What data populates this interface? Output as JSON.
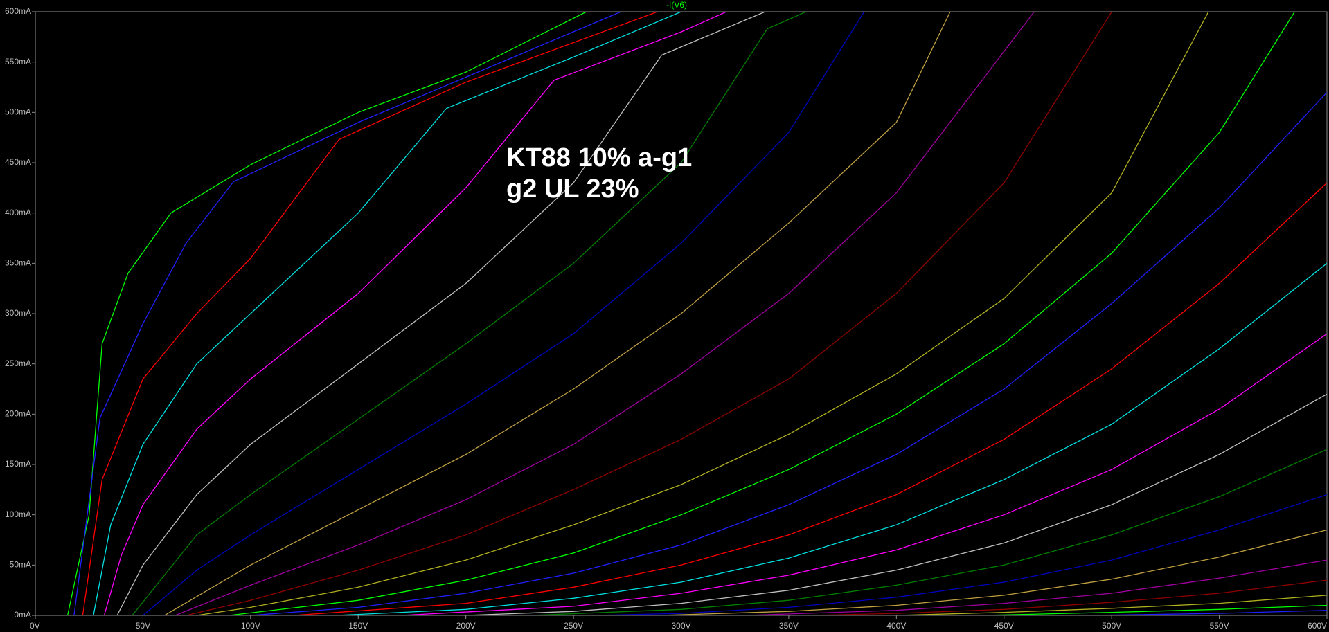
{
  "chart_data": {
    "type": "line",
    "title": "-I(V6)",
    "title_color": "#00ff00",
    "annotation": [
      "KT88 10% a-g1",
      "g2 UL 23%"
    ],
    "xlim": [
      0,
      600
    ],
    "ylim": [
      0,
      600
    ],
    "xticks": [
      {
        "value": 0,
        "label": "0V"
      },
      {
        "value": 50,
        "label": "50V"
      },
      {
        "value": 100,
        "label": "100V"
      },
      {
        "value": 150,
        "label": "150V"
      },
      {
        "value": 200,
        "label": "200V"
      },
      {
        "value": 250,
        "label": "250V"
      },
      {
        "value": 300,
        "label": "300V"
      },
      {
        "value": 350,
        "label": "350V"
      },
      {
        "value": 400,
        "label": "400V"
      },
      {
        "value": 450,
        "label": "450V"
      },
      {
        "value": 500,
        "label": "500V"
      },
      {
        "value": 550,
        "label": "550V"
      },
      {
        "value": 600,
        "label": "600V"
      }
    ],
    "yticks": [
      {
        "value": 0,
        "label": "0mA"
      },
      {
        "value": 50,
        "label": "50mA"
      },
      {
        "value": 100,
        "label": "100mA"
      },
      {
        "value": 150,
        "label": "150mA"
      },
      {
        "value": 200,
        "label": "200mA"
      },
      {
        "value": 250,
        "label": "250mA"
      },
      {
        "value": 300,
        "label": "300mA"
      },
      {
        "value": 350,
        "label": "350mA"
      },
      {
        "value": 400,
        "label": "400mA"
      },
      {
        "value": 450,
        "label": "450mA"
      },
      {
        "value": 500,
        "label": "500mA"
      },
      {
        "value": 550,
        "label": "550mA"
      },
      {
        "value": 600,
        "label": "600mA"
      }
    ],
    "grid": false,
    "series": [
      {
        "color": "#00ff00",
        "x": [
          15,
          25,
          31,
          43,
          63,
          100,
          150,
          200,
          256
        ],
        "values": [
          0,
          100,
          270,
          340,
          400,
          448,
          500,
          540,
          600
        ]
      },
      {
        "color": "#2020ff",
        "x": [
          18,
          30,
          50,
          70,
          92,
          150,
          200,
          272
        ],
        "values": [
          0,
          196,
          290,
          370,
          431,
          490,
          535,
          600
        ]
      },
      {
        "color": "#ff0000",
        "x": [
          22,
          31,
          50,
          75,
          100,
          141,
          200,
          289
        ],
        "values": [
          0,
          135,
          235,
          300,
          355,
          473,
          530,
          600
        ]
      },
      {
        "color": "#00e0e0",
        "x": [
          27,
          35,
          50,
          75,
          100,
          150,
          191,
          250,
          300
        ],
        "values": [
          0,
          90,
          170,
          250,
          300,
          400,
          504,
          555,
          600
        ]
      },
      {
        "color": "#ff00ff",
        "x": [
          32,
          40,
          50,
          75,
          100,
          150,
          200,
          241,
          300,
          321
        ],
        "values": [
          0,
          60,
          110,
          185,
          235,
          320,
          425,
          532,
          580,
          600
        ]
      },
      {
        "color": "#c0c0c0",
        "x": [
          38,
          50,
          75,
          100,
          150,
          200,
          250,
          291,
          339
        ],
        "values": [
          0,
          50,
          120,
          170,
          250,
          330,
          430,
          557,
          600
        ]
      },
      {
        "color": "#008000",
        "x": [
          45,
          75,
          100,
          150,
          200,
          250,
          300,
          340,
          358
        ],
        "values": [
          0,
          80,
          120,
          195,
          270,
          350,
          450,
          583,
          600
        ]
      },
      {
        "color": "#0000c0",
        "x": [
          50,
          75,
          100,
          150,
          200,
          250,
          300,
          350,
          385
        ],
        "values": [
          0,
          45,
          80,
          145,
          210,
          280,
          370,
          480,
          600
        ]
      },
      {
        "color": "#c0a040",
        "x": [
          60,
          100,
          150,
          200,
          250,
          300,
          350,
          400,
          425
        ],
        "values": [
          0,
          50,
          105,
          160,
          225,
          300,
          390,
          490,
          600
        ]
      },
      {
        "color": "#a000a0",
        "x": [
          65,
          100,
          150,
          200,
          250,
          300,
          350,
          400,
          464
        ],
        "values": [
          0,
          30,
          70,
          115,
          170,
          240,
          320,
          420,
          600
        ]
      },
      {
        "color": "#900000",
        "x": [
          70,
          100,
          150,
          200,
          250,
          300,
          350,
          400,
          450,
          500
        ],
        "values": [
          0,
          15,
          45,
          80,
          125,
          175,
          235,
          320,
          430,
          600
        ]
      },
      {
        "color": "#b0b020",
        "x": [
          75,
          100,
          150,
          200,
          250,
          300,
          350,
          400,
          450,
          500,
          545
        ],
        "values": [
          0,
          8,
          28,
          55,
          90,
          130,
          180,
          240,
          315,
          420,
          600
        ]
      },
      {
        "color": "#00ff00",
        "x": [
          90,
          150,
          200,
          250,
          300,
          350,
          400,
          450,
          500,
          550,
          585
        ],
        "values": [
          0,
          15,
          35,
          62,
          100,
          145,
          200,
          270,
          360,
          480,
          600
        ]
      },
      {
        "color": "#2020ff",
        "x": [
          100,
          150,
          200,
          250,
          300,
          350,
          400,
          450,
          500,
          550,
          600
        ],
        "values": [
          0,
          8,
          22,
          42,
          70,
          110,
          160,
          225,
          310,
          405,
          520
        ]
      },
      {
        "color": "#ff0000",
        "x": [
          120,
          200,
          250,
          300,
          350,
          400,
          450,
          500,
          550,
          600
        ],
        "values": [
          0,
          12,
          28,
          50,
          80,
          120,
          175,
          245,
          330,
          430
        ]
      },
      {
        "color": "#00e0e0",
        "x": [
          140,
          200,
          250,
          300,
          350,
          400,
          450,
          500,
          550,
          600
        ],
        "values": [
          0,
          6,
          17,
          33,
          57,
          90,
          135,
          190,
          265,
          350
        ]
      },
      {
        "color": "#ff00ff",
        "x": [
          170,
          250,
          300,
          350,
          400,
          450,
          500,
          550,
          600
        ],
        "values": [
          0,
          9,
          22,
          40,
          65,
          100,
          145,
          205,
          280
        ]
      },
      {
        "color": "#c0c0c0",
        "x": [
          200,
          250,
          300,
          350,
          400,
          450,
          500,
          550,
          600
        ],
        "values": [
          0,
          4,
          12,
          25,
          45,
          72,
          110,
          160,
          220
        ]
      },
      {
        "color": "#008000",
        "x": [
          230,
          300,
          350,
          400,
          450,
          500,
          550,
          600
        ],
        "values": [
          0,
          6,
          15,
          30,
          50,
          80,
          118,
          165
        ]
      },
      {
        "color": "#0000c0",
        "x": [
          260,
          300,
          350,
          400,
          450,
          500,
          550,
          600
        ],
        "values": [
          0,
          2,
          8,
          18,
          33,
          55,
          85,
          120
        ]
      },
      {
        "color": "#c0a040",
        "x": [
          290,
          350,
          400,
          450,
          500,
          550,
          600
        ],
        "values": [
          0,
          4,
          10,
          20,
          36,
          58,
          85
        ]
      },
      {
        "color": "#a000a0",
        "x": [
          330,
          400,
          450,
          500,
          550,
          600
        ],
        "values": [
          0,
          5,
          12,
          22,
          37,
          55
        ]
      },
      {
        "color": "#900000",
        "x": [
          360,
          400,
          450,
          500,
          550,
          600
        ],
        "values": [
          0,
          2,
          6,
          13,
          22,
          35
        ]
      },
      {
        "color": "#b0b020",
        "x": [
          400,
          450,
          500,
          550,
          600
        ],
        "values": [
          0,
          3,
          7,
          12,
          20
        ]
      },
      {
        "color": "#00ff00",
        "x": [
          440,
          500,
          550,
          600
        ],
        "values": [
          0,
          3,
          6,
          10
        ]
      },
      {
        "color": "#2020ff",
        "x": [
          490,
          550,
          600
        ],
        "values": [
          0,
          2,
          5
        ]
      }
    ]
  }
}
